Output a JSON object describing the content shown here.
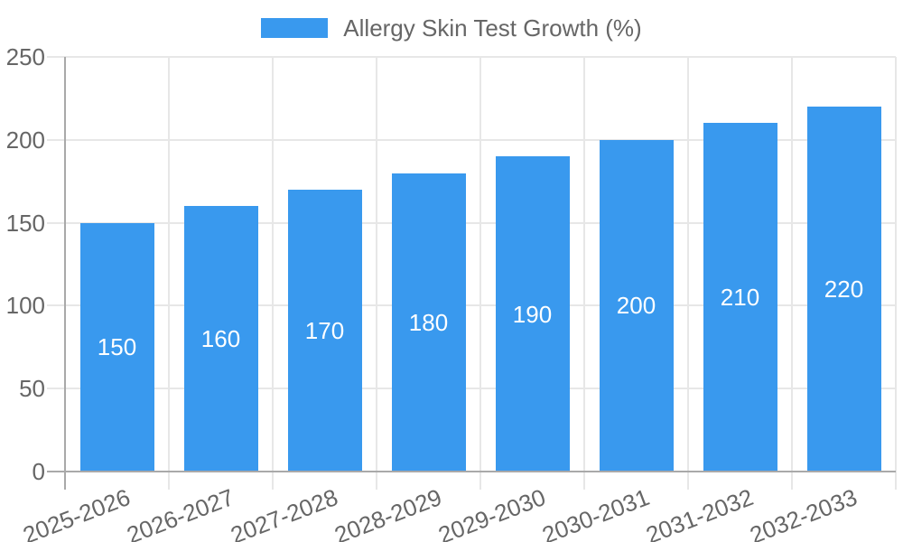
{
  "chart_data": {
    "type": "bar",
    "title": "",
    "categories": [
      "2025-2026",
      "2026-2027",
      "2027-2028",
      "2028-2029",
      "2029-2030",
      "2030-2031",
      "2031-2032",
      "2032-2033"
    ],
    "series": [
      {
        "name": "Allergy Skin Test Growth (%)",
        "values": [
          150,
          160,
          170,
          180,
          190,
          200,
          210,
          220
        ]
      }
    ],
    "value_labels": [
      "150",
      "160",
      "170",
      "180",
      "190",
      "200",
      "210",
      "220"
    ],
    "xlabel": "",
    "ylabel": "",
    "ylim": [
      0,
      250
    ],
    "yticks": [
      0,
      50,
      100,
      150,
      200,
      250
    ],
    "grid": true,
    "legend_position": "top",
    "colors": {
      "bar": "#3999ee",
      "grid_line": "#e7e7e7",
      "axis_line": "#a9a9a9",
      "tick_text": "#666666",
      "value_label_text": "#ffffff",
      "background": "#ffffff"
    }
  }
}
